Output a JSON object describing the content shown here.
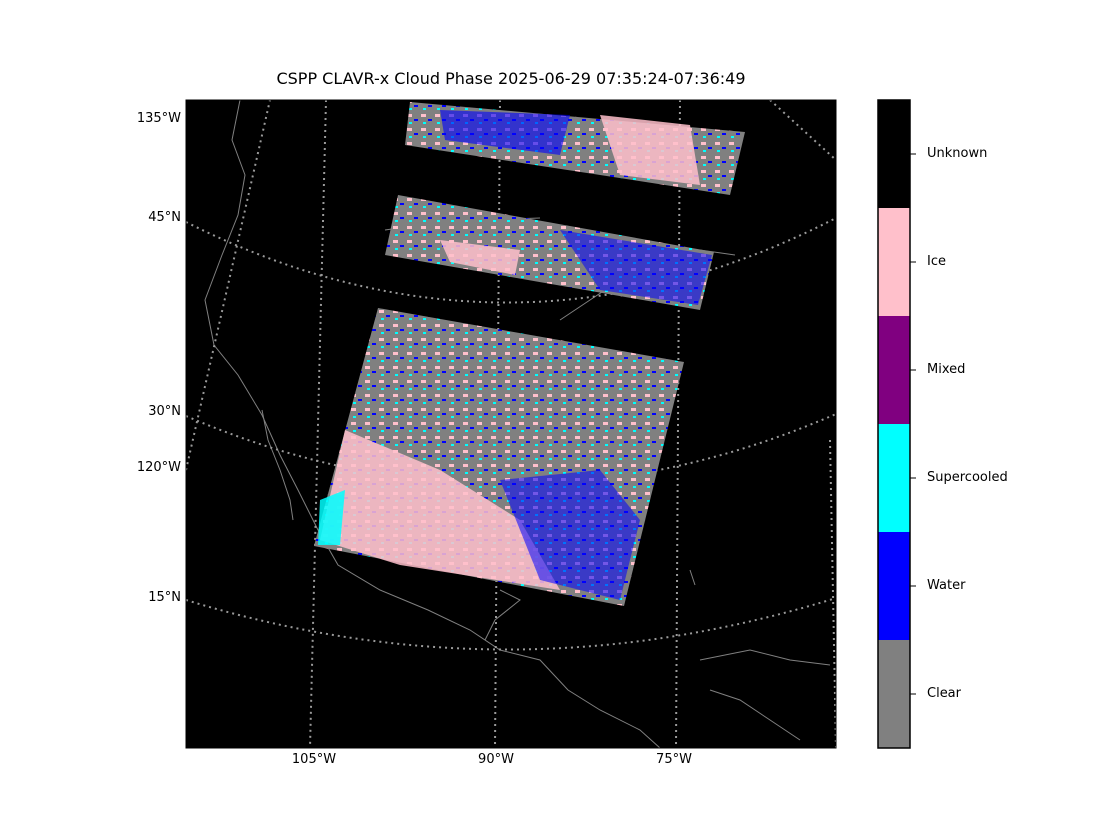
{
  "title": "CSPP CLAVR-x Cloud Phase 2025-06-29 07:35:24-07:36:49",
  "colors": {
    "background": "#000000",
    "coastline": "#808080",
    "graticule": "#9a9a9a",
    "clear": "#808080",
    "water": "#0000ff",
    "supercooled": "#00ffff",
    "mixed": "#800080",
    "ice": "#ffc0cb",
    "unknown": "#000000"
  },
  "map": {
    "projection": "Lambert Conformal",
    "graticule_style": "dotted",
    "latitude_labels": [
      "45°N",
      "30°N",
      "15°N"
    ],
    "longitude_labels_left": [
      "135°W",
      "120°W"
    ],
    "longitude_labels_bottom": [
      "105°W",
      "90°W",
      "75°W"
    ]
  },
  "colorbar": {
    "categories": [
      {
        "label": "Unknown",
        "color": "#000000"
      },
      {
        "label": "Ice",
        "color": "#ffc0cb"
      },
      {
        "label": "Mixed",
        "color": "#800080"
      },
      {
        "label": "Supercooled",
        "color": "#00ffff"
      },
      {
        "label": "Water",
        "color": "#0000ff"
      },
      {
        "label": "Clear",
        "color": "#808080"
      }
    ]
  }
}
